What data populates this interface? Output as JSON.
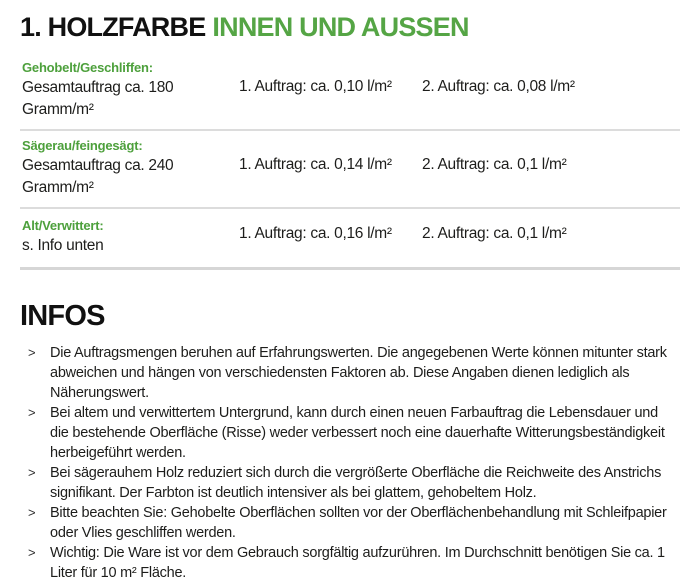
{
  "colors": {
    "accent_green": "#55a545",
    "label_green": "#4da03c",
    "separator_gray": "#dcdcdc",
    "text_black": "#1d1d1b"
  },
  "header": {
    "title_black": "1. HOLZFARBE",
    "title_green": "INNEN UND AUSSEN"
  },
  "table": {
    "rows": [
      {
        "label": "Gehobelt/Geschliffen:",
        "sublabel": "Gesamtauftrag ca. 180 Gramm/m²",
        "coat1": "1. Auftrag: ca. 0,10 l/m²",
        "coat2": "2. Auftrag: ca. 0,08 l/m²"
      },
      {
        "label": "Sägerau/feingesägt:",
        "sublabel": "Gesamtauftrag ca. 240 Gramm/m²",
        "coat1": "1. Auftrag: ca. 0,14 l/m²",
        "coat2": "2. Auftrag: ca. 0,1 l/m²"
      },
      {
        "label": "Alt/Verwittert:",
        "sublabel": "s. Info unten",
        "coat1": "1. Auftrag: ca. 0,16 l/m²",
        "coat2": "2. Auftrag: ca. 0,1 l/m²"
      }
    ]
  },
  "infos": {
    "heading": "INFOS",
    "bullet_char": ">",
    "items": [
      "Die Auftragsmengen beruhen auf Erfahrungswerten. Die angegebenen Werte können mitunter stark abweichen und hängen von verschiedensten Faktoren ab. Diese Angaben dienen lediglich als Näherungswert.",
      "Bei altem und verwittertem Untergrund, kann durch einen neuen Farbauftrag die Lebensdauer und die bestehende Oberfläche (Risse) weder verbessert noch eine dauerhafte Witterungsbeständigkeit herbeigeführt werden.",
      "Bei sägerauhem Holz reduziert sich durch die vergrößerte Oberfläche die Reichweite des Anstrichs signifikant. Der Farbton ist deutlich intensiver als bei glattem, gehobeltem Holz.",
      "Bitte beachten Sie: Gehobelte Oberflächen sollten vor der Oberflächenbehandlung mit Schleifpapier oder Vlies geschliffen werden.",
      "Wichtig: Die Ware ist vor dem Gebrauch sorgfältig aufzurühren. Im Durchschnitt benötigen Sie ca. 1 Liter für 10 m² Fläche."
    ]
  }
}
